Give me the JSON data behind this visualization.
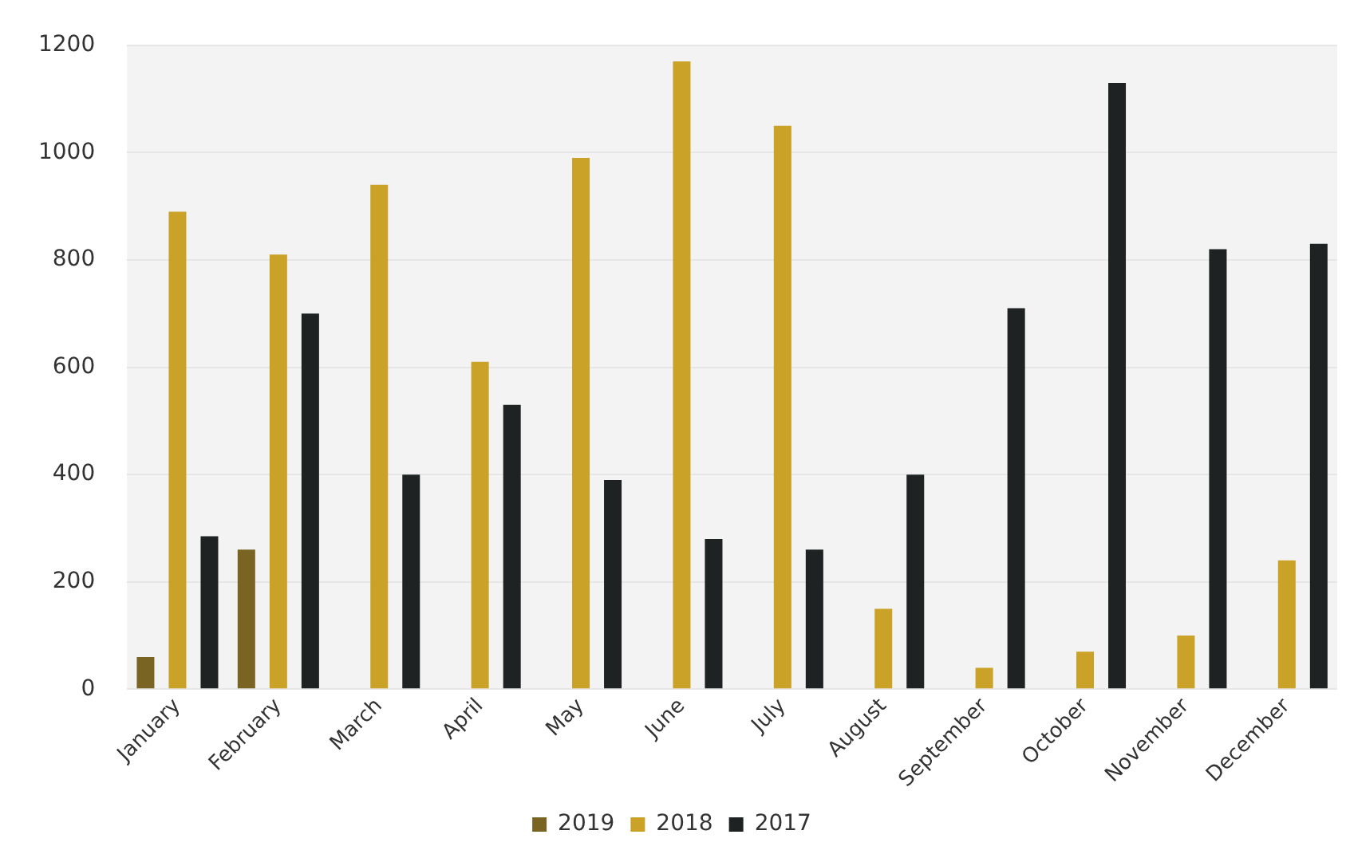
{
  "chart_data": {
    "type": "bar",
    "categories": [
      "January",
      "February",
      "March",
      "April",
      "May",
      "June",
      "July",
      "August",
      "September",
      "October",
      "November",
      "December"
    ],
    "series": [
      {
        "name": "2019",
        "color": "#7a6424",
        "values": [
          60,
          260,
          null,
          null,
          null,
          null,
          null,
          null,
          null,
          null,
          null,
          null
        ]
      },
      {
        "name": "2018",
        "color": "#c9a227",
        "values": [
          890,
          810,
          940,
          610,
          990,
          1170,
          1050,
          150,
          40,
          70,
          100,
          240
        ]
      },
      {
        "name": "2017",
        "color": "#1e2222",
        "values": [
          285,
          700,
          400,
          530,
          390,
          280,
          260,
          400,
          710,
          1130,
          820,
          830
        ]
      }
    ],
    "ylim": [
      0,
      1200
    ],
    "yticks": [
      0,
      200,
      400,
      600,
      800,
      1000,
      1200
    ],
    "grid": "y",
    "legend": "bottom"
  }
}
